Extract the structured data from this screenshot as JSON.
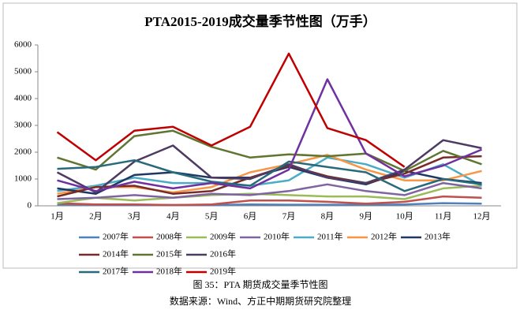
{
  "chart_data": {
    "type": "line",
    "title": "PTA2015-2019成交量季节性图（万手）",
    "categories": [
      "1月",
      "2月",
      "3月",
      "4月",
      "5月",
      "6月",
      "7月",
      "8月",
      "9月",
      "10月",
      "11月",
      "12月"
    ],
    "ylim": [
      0,
      6000
    ],
    "yticks": [
      0,
      1000,
      2000,
      3000,
      4000,
      5000,
      6000
    ],
    "series": [
      {
        "name": "2007年",
        "color": "#4f81bd",
        "values": [
          50,
          40,
          30,
          30,
          30,
          50,
          40,
          40,
          40,
          50,
          100,
          80
        ]
      },
      {
        "name": "2008年",
        "color": "#c0504d",
        "values": [
          100,
          50,
          50,
          30,
          50,
          200,
          200,
          150,
          80,
          150,
          350,
          300
        ]
      },
      {
        "name": "2009年",
        "color": "#9bbb59",
        "values": [
          100,
          300,
          200,
          300,
          400,
          450,
          400,
          350,
          350,
          250,
          650,
          750
        ]
      },
      {
        "name": "2010年",
        "color": "#8064a2",
        "values": [
          250,
          300,
          400,
          300,
          450,
          400,
          550,
          800,
          550,
          400,
          850,
          650
        ]
      },
      {
        "name": "2011年",
        "color": "#4bacc6",
        "values": [
          550,
          750,
          1050,
          850,
          850,
          750,
          950,
          1800,
          1550,
          1050,
          1550,
          750
        ]
      },
      {
        "name": "2012年",
        "color": "#f79646",
        "values": [
          450,
          700,
          700,
          500,
          700,
          1250,
          1550,
          1900,
          1350,
          950,
          950,
          1300
        ]
      },
      {
        "name": "2013年",
        "color": "#1f3864",
        "values": [
          650,
          450,
          1150,
          1250,
          1050,
          1050,
          1450,
          1050,
          800,
          1300,
          1000,
          850
        ]
      },
      {
        "name": "2014年",
        "color": "#772c2a",
        "values": [
          350,
          700,
          750,
          450,
          550,
          1050,
          1500,
          1100,
          850,
          1200,
          1800,
          1850
        ]
      },
      {
        "name": "2015年",
        "color": "#5f7530",
        "values": [
          1800,
          1350,
          2600,
          2800,
          2200,
          1800,
          1920,
          1850,
          1950,
          1300,
          2050,
          1550
        ]
      },
      {
        "name": "2016年",
        "color": "#4d3b62",
        "values": [
          1250,
          500,
          1650,
          2250,
          1050,
          1000,
          1550,
          1050,
          850,
          1350,
          2450,
          2150
        ]
      },
      {
        "name": "2017年",
        "color": "#276a7c",
        "values": [
          1380,
          1450,
          1700,
          1250,
          900,
          750,
          1650,
          1450,
          1250,
          550,
          1000,
          800
        ]
      },
      {
        "name": "2018年",
        "color": "#7030a0",
        "values": [
          950,
          550,
          900,
          650,
          850,
          650,
          1350,
          4720,
          1950,
          1100,
          1500,
          2100
        ]
      },
      {
        "name": "2019年",
        "color": "#c00000",
        "values": [
          2750,
          1700,
          2800,
          2950,
          2250,
          2950,
          5680,
          2900,
          2450,
          1450,
          null,
          null
        ]
      }
    ]
  },
  "caption": {
    "figure": "图 35：PTA 期货成交量季节性图",
    "source": "数据来源：Wind、方正中期期货研究院整理"
  }
}
